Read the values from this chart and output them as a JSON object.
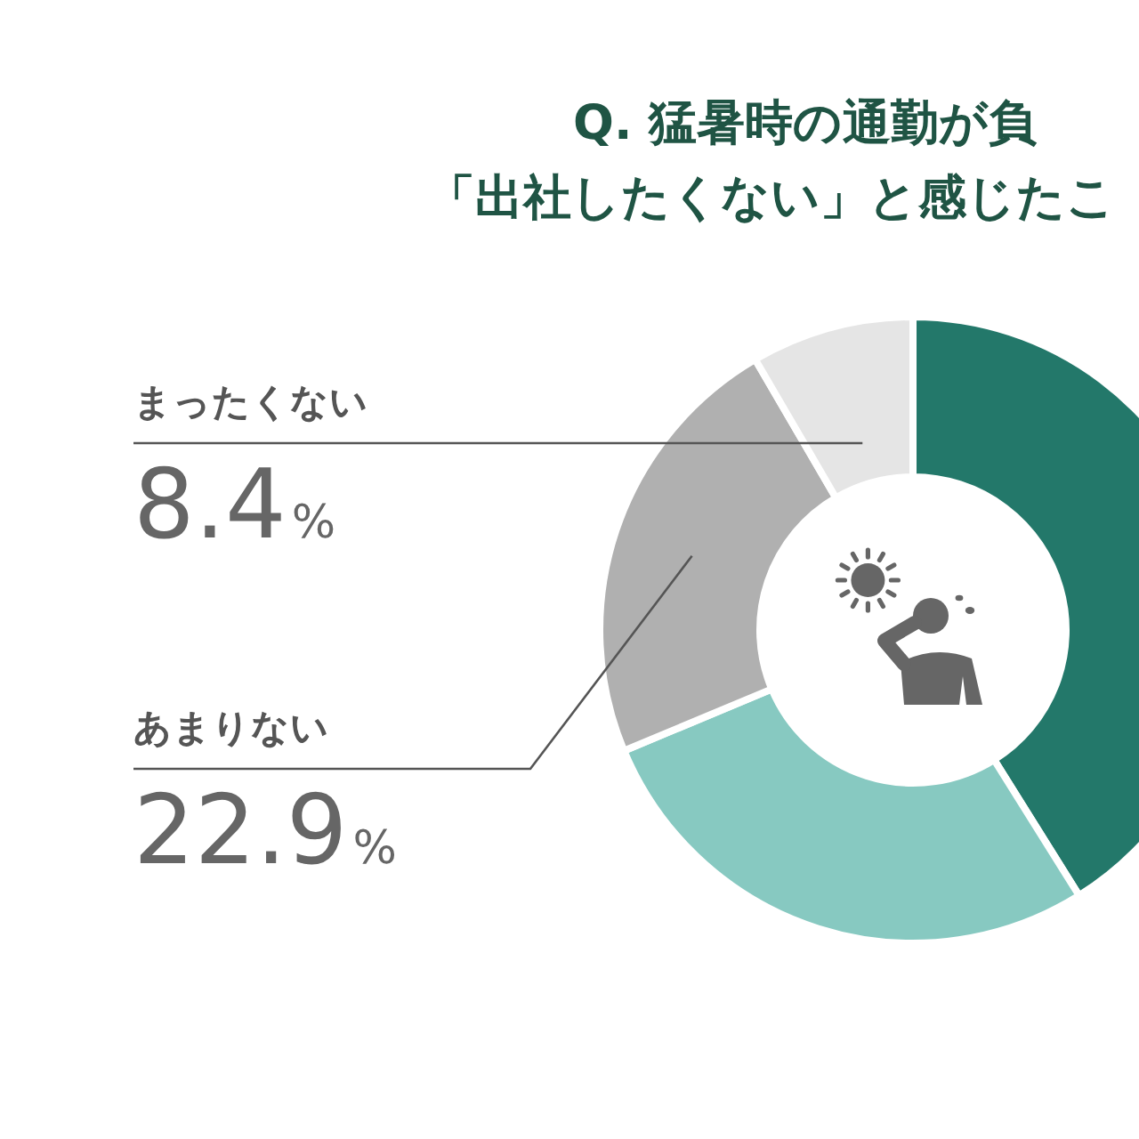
{
  "chart_data": {
    "type": "donut",
    "title": "Q. 猛暑時の通勤が負",
    "subtitle": "「出社したくない」と感じたこ",
    "categories": [
      null,
      null,
      "あまりない",
      "まったくない"
    ],
    "values": [
      41.1,
      27.6,
      22.9,
      8.4
    ],
    "colors": [
      "#23786a",
      "#87c9c1",
      "#b0b0b0",
      "#e5e5e5"
    ],
    "value_labels": [
      null,
      null,
      "22.9%",
      "8.4%"
    ]
  }
}
